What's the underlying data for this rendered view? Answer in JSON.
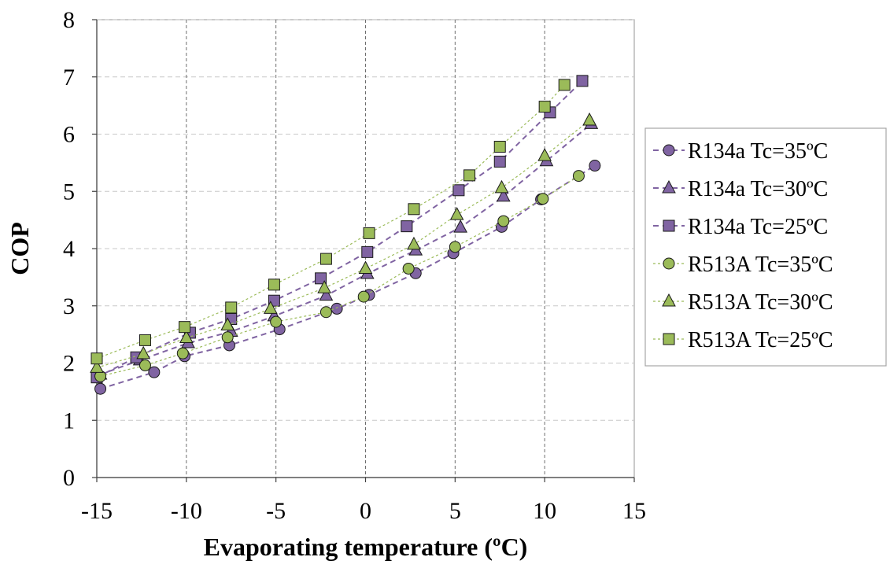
{
  "chart_data": {
    "type": "scatter",
    "title": "",
    "xlabel": "Evaporating temperature (ºC)",
    "ylabel": "COP",
    "xlim": [
      -15,
      15
    ],
    "ylim": [
      0,
      8
    ],
    "xticks": [
      -15,
      -10,
      -5,
      0,
      5,
      10,
      15
    ],
    "yticks": [
      0,
      1,
      2,
      3,
      4,
      5,
      6,
      7,
      8
    ],
    "xtick_labels": [
      "-15",
      "-10",
      "-5",
      "0",
      "5",
      "10",
      "15"
    ],
    "ytick_labels": [
      "0",
      "1",
      "2",
      "3",
      "4",
      "5",
      "6",
      "7",
      "8"
    ],
    "grid": "vertical solid major, horizontal dashed",
    "legend_position": "right",
    "series": [
      {
        "name": "R134a Tc=35ºC",
        "marker": "circle",
        "color": "#8064a2",
        "line": "dashed",
        "points": [
          [
            -14.8,
            1.55
          ],
          [
            -11.8,
            1.84
          ],
          [
            -10.1,
            2.12
          ],
          [
            -7.6,
            2.31
          ],
          [
            -4.8,
            2.59
          ],
          [
            -1.6,
            2.95
          ],
          [
            0.2,
            3.19
          ],
          [
            2.8,
            3.57
          ],
          [
            4.9,
            3.92
          ],
          [
            7.6,
            4.38
          ],
          [
            9.8,
            4.86
          ],
          [
            12.8,
            5.45
          ]
        ]
      },
      {
        "name": "R134a Tc=30ºC",
        "marker": "triangle",
        "color": "#8064a2",
        "line": "dashed",
        "points": [
          [
            -14.8,
            1.8
          ],
          [
            -12.6,
            2.05
          ],
          [
            -9.9,
            2.35
          ],
          [
            -7.5,
            2.55
          ],
          [
            -5.1,
            2.82
          ],
          [
            -2.2,
            3.18
          ],
          [
            0.1,
            3.56
          ],
          [
            2.8,
            3.97
          ],
          [
            5.3,
            4.37
          ],
          [
            7.7,
            4.91
          ],
          [
            10.1,
            5.53
          ],
          [
            12.6,
            6.18
          ]
        ]
      },
      {
        "name": "R134a Tc=25ºC",
        "marker": "square",
        "color": "#8064a2",
        "line": "dashed",
        "points": [
          [
            -15.0,
            1.75
          ],
          [
            -12.8,
            2.1
          ],
          [
            -9.8,
            2.53
          ],
          [
            -7.5,
            2.77
          ],
          [
            -5.1,
            3.09
          ],
          [
            -2.5,
            3.48
          ],
          [
            0.1,
            3.94
          ],
          [
            2.3,
            4.39
          ],
          [
            5.2,
            5.02
          ],
          [
            7.5,
            5.52
          ],
          [
            10.3,
            6.38
          ],
          [
            12.1,
            6.93
          ]
        ]
      },
      {
        "name": "R513A Tc=35ºC",
        "marker": "circle",
        "color": "#9bbb59",
        "line": "dotted",
        "points": [
          [
            -14.8,
            1.77
          ],
          [
            -12.3,
            1.96
          ],
          [
            -10.2,
            2.17
          ],
          [
            -7.7,
            2.45
          ],
          [
            -5.0,
            2.72
          ],
          [
            -2.2,
            2.89
          ],
          [
            -0.1,
            3.16
          ],
          [
            2.4,
            3.65
          ],
          [
            5.0,
            4.03
          ],
          [
            7.7,
            4.48
          ],
          [
            9.9,
            4.87
          ],
          [
            11.9,
            5.27
          ]
        ]
      },
      {
        "name": "R513A Tc=30ºC",
        "marker": "triangle",
        "color": "#9bbb59",
        "line": "dotted",
        "points": [
          [
            -15.0,
            1.92
          ],
          [
            -12.4,
            2.16
          ],
          [
            -10.0,
            2.44
          ],
          [
            -7.7,
            2.66
          ],
          [
            -5.3,
            2.95
          ],
          [
            -2.3,
            3.31
          ],
          [
            0.0,
            3.65
          ],
          [
            2.7,
            4.07
          ],
          [
            5.1,
            4.59
          ],
          [
            7.6,
            5.06
          ],
          [
            10.0,
            5.62
          ],
          [
            12.5,
            6.24
          ]
        ]
      },
      {
        "name": "R513A Tc=25ºC",
        "marker": "square",
        "color": "#9bbb59",
        "line": "dotted",
        "points": [
          [
            -15.0,
            2.08
          ],
          [
            -12.3,
            2.4
          ],
          [
            -10.1,
            2.63
          ],
          [
            -7.5,
            2.97
          ],
          [
            -5.1,
            3.37
          ],
          [
            -2.2,
            3.82
          ],
          [
            0.2,
            4.27
          ],
          [
            2.7,
            4.69
          ],
          [
            5.8,
            5.28
          ],
          [
            7.5,
            5.78
          ],
          [
            10.0,
            6.48
          ],
          [
            11.1,
            6.86
          ]
        ]
      }
    ]
  }
}
